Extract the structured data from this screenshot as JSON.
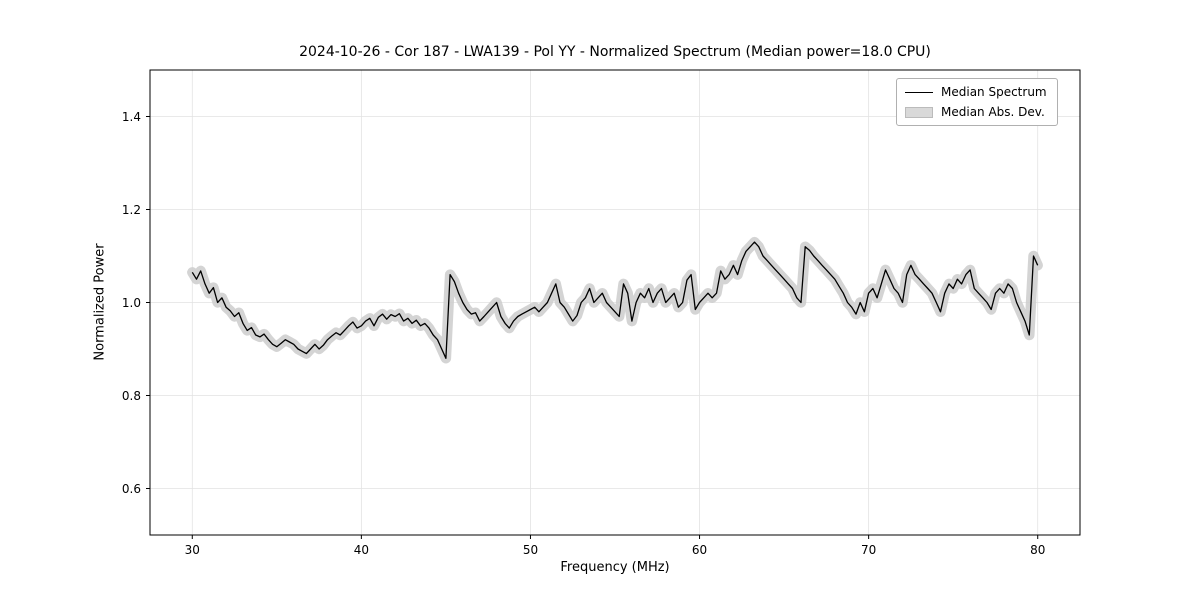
{
  "figure": {
    "title": "2024-10-26 - Cor 187 - LWA139 - Pol YY - Normalized Spectrum (Median power=18.0 CPU)",
    "xlabel": "Frequency (MHz)",
    "ylabel": "Normalized Power"
  },
  "legend": {
    "entries": [
      {
        "label": "Median Spectrum",
        "type": "line",
        "color": "#000000"
      },
      {
        "label": "Median Abs. Dev.",
        "type": "patch",
        "color": "#d9d9d9"
      }
    ]
  },
  "chart_data": {
    "type": "line",
    "title": "2024-10-26 - Cor 187 - LWA139 - Pol YY - Normalized Spectrum (Median power=18.0 CPU)",
    "xlabel": "Frequency (MHz)",
    "ylabel": "Normalized Power",
    "xlim": [
      27.5,
      82.5
    ],
    "ylim": [
      0.5,
      1.5
    ],
    "xticks": [
      30,
      40,
      50,
      60,
      70,
      80
    ],
    "yticks": [
      0.6,
      0.8,
      1.0,
      1.2,
      1.4
    ],
    "grid": true,
    "grid_color": "#e2e2e2",
    "legend_position": "upper right",
    "series": [
      {
        "name": "Median Spectrum",
        "color": "#000000",
        "x_start": 30,
        "x_step": 0.25,
        "y": [
          1.065,
          1.05,
          1.068,
          1.04,
          1.02,
          1.032,
          1.0,
          1.01,
          0.99,
          0.982,
          0.97,
          0.978,
          0.955,
          0.94,
          0.946,
          0.93,
          0.926,
          0.932,
          0.92,
          0.91,
          0.905,
          0.912,
          0.92,
          0.915,
          0.91,
          0.9,
          0.895,
          0.89,
          0.9,
          0.91,
          0.9,
          0.908,
          0.92,
          0.928,
          0.935,
          0.93,
          0.94,
          0.95,
          0.958,
          0.945,
          0.95,
          0.96,
          0.966,
          0.95,
          0.968,
          0.975,
          0.964,
          0.974,
          0.97,
          0.976,
          0.96,
          0.966,
          0.955,
          0.962,
          0.95,
          0.955,
          0.945,
          0.93,
          0.92,
          0.9,
          0.88,
          1.06,
          1.045,
          1.02,
          1.0,
          0.985,
          0.975,
          0.978,
          0.96,
          0.97,
          0.98,
          0.99,
          1.0,
          0.97,
          0.955,
          0.945,
          0.96,
          0.97,
          0.975,
          0.98,
          0.985,
          0.99,
          0.98,
          0.99,
          1.0,
          1.02,
          1.04,
          1.0,
          0.99,
          0.975,
          0.96,
          0.972,
          1.0,
          1.01,
          1.03,
          1.0,
          1.01,
          1.02,
          1.0,
          0.99,
          0.98,
          0.97,
          1.04,
          1.02,
          0.96,
          1.0,
          1.02,
          1.01,
          1.03,
          1.0,
          1.02,
          1.03,
          1.0,
          1.01,
          1.02,
          0.99,
          1.0,
          1.048,
          1.06,
          0.985,
          1.0,
          1.01,
          1.02,
          1.01,
          1.02,
          1.068,
          1.05,
          1.06,
          1.08,
          1.06,
          1.09,
          1.11,
          1.12,
          1.13,
          1.12,
          1.1,
          1.09,
          1.08,
          1.07,
          1.06,
          1.05,
          1.04,
          1.03,
          1.01,
          1.0,
          1.12,
          1.112,
          1.1,
          1.09,
          1.08,
          1.07,
          1.06,
          1.05,
          1.035,
          1.02,
          1.0,
          0.99,
          0.975,
          1.0,
          0.98,
          1.02,
          1.03,
          1.01,
          1.04,
          1.07,
          1.05,
          1.03,
          1.02,
          1.0,
          1.06,
          1.08,
          1.06,
          1.05,
          1.04,
          1.03,
          1.02,
          1.0,
          0.98,
          1.02,
          1.04,
          1.03,
          1.05,
          1.04,
          1.06,
          1.07,
          1.03,
          1.02,
          1.01,
          1.0,
          0.985,
          1.02,
          1.03,
          1.02,
          1.04,
          1.03,
          1.0,
          0.98,
          0.96,
          0.93,
          1.1,
          1.08
        ]
      },
      {
        "name": "Median Abs. Dev.",
        "type": "band",
        "color": "#cccccc",
        "halfwidth": 0.008
      }
    ]
  }
}
